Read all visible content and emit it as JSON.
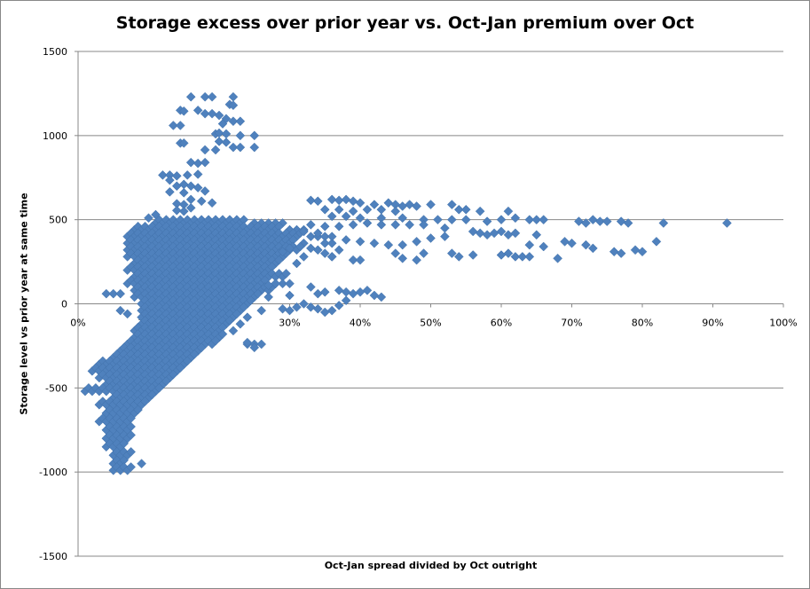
{
  "chart_data": {
    "type": "scatter",
    "title": "Storage excess over prior year vs. Oct-Jan premium over Oct",
    "xlabel": "Oct-Jan spread divided by Oct outright",
    "ylabel": "Storage level vs prior year at same time",
    "xlim": [
      0,
      100
    ],
    "ylim": [
      -1500,
      1500
    ],
    "x_unit": "%",
    "x_ticks": [
      "0%",
      "10%",
      "20%",
      "30%",
      "40%",
      "50%",
      "60%",
      "70%",
      "80%",
      "90%",
      "100%"
    ],
    "y_ticks": [
      "1500",
      "1000",
      "500",
      "0",
      "-500",
      "-1000",
      "-1500"
    ],
    "grid": "horizontal",
    "legend": "none",
    "marker_color": "#4F81BD",
    "marker": "diamond",
    "dense_rows": [
      {
        "y": 480,
        "from": 11,
        "to": 23,
        "extra": [
          25,
          26,
          27,
          28,
          29
        ]
      },
      {
        "y": 440,
        "from": 8,
        "to": 28,
        "extra": [
          30,
          31,
          32
        ]
      },
      {
        "y": 400,
        "from": 7,
        "to": 31,
        "extra": [
          33,
          34,
          35
        ]
      },
      {
        "y": 360,
        "from": 7,
        "to": 30,
        "extra": [
          32,
          35,
          36
        ]
      },
      {
        "y": 320,
        "from": 7,
        "to": 31,
        "extra": [
          34,
          37
        ]
      },
      {
        "y": 280,
        "from": 7,
        "to": 29,
        "extra": [
          32,
          36
        ]
      },
      {
        "y": 240,
        "from": 8,
        "to": 28,
        "extra": [
          31
        ]
      },
      {
        "y": 200,
        "from": 7,
        "to": 27,
        "extra": []
      },
      {
        "y": 160,
        "from": 8,
        "to": 29,
        "extra": []
      },
      {
        "y": 120,
        "from": 7,
        "to": 26,
        "extra": [
          28,
          29
        ]
      },
      {
        "y": 80,
        "from": 8,
        "to": 27,
        "extra": []
      },
      {
        "y": 40,
        "from": 8,
        "to": 25,
        "extra": [
          27
        ]
      },
      {
        "y": 0,
        "from": 9,
        "to": 24,
        "extra": []
      },
      {
        "y": -40,
        "from": 9,
        "to": 23,
        "extra": [
          26
        ]
      },
      {
        "y": -80,
        "from": 9,
        "to": 22,
        "extra": [
          24
        ]
      },
      {
        "y": -120,
        "from": 9,
        "to": 21,
        "extra": [
          23
        ]
      },
      {
        "y": -160,
        "from": 8,
        "to": 20,
        "extra": [
          22
        ]
      },
      {
        "y": -200,
        "from": 8,
        "to": 20,
        "extra": []
      },
      {
        "y": -240,
        "from": 7,
        "to": 19,
        "extra": [
          24,
          25
        ]
      },
      {
        "y": -280,
        "from": 6,
        "to": 17,
        "extra": []
      },
      {
        "y": -320,
        "from": 5,
        "to": 16,
        "extra": []
      },
      {
        "y": -360,
        "from": 3,
        "to": 15,
        "extra": []
      },
      {
        "y": -400,
        "from": 2,
        "to": 14,
        "extra": []
      },
      {
        "y": -440,
        "from": 3,
        "to": 13,
        "extra": []
      },
      {
        "y": -480,
        "from": 4,
        "to": 12,
        "extra": []
      },
      {
        "y": -520,
        "from": 1,
        "to": 11,
        "extra": []
      },
      {
        "y": -560,
        "from": 5,
        "to": 10,
        "extra": []
      },
      {
        "y": -600,
        "from": 3,
        "to": 9,
        "extra": []
      },
      {
        "y": -650,
        "from": 4,
        "to": 8,
        "extra": []
      },
      {
        "y": -700,
        "from": 3,
        "to": 7,
        "extra": []
      },
      {
        "y": -750,
        "from": 4,
        "to": 7,
        "extra": []
      },
      {
        "y": -800,
        "from": 4,
        "to": 7,
        "extra": []
      },
      {
        "y": -850,
        "from": 4,
        "to": 6,
        "extra": []
      },
      {
        "y": -900,
        "from": 5,
        "to": 7,
        "extra": []
      },
      {
        "y": -950,
        "from": 5,
        "to": 6,
        "extra": [
          9
        ]
      },
      {
        "y": -990,
        "from": 5,
        "to": 7,
        "extra": []
      }
    ],
    "points": [
      [
        16,
        1230
      ],
      [
        18,
        1230
      ],
      [
        19,
        1230
      ],
      [
        22,
        1230
      ],
      [
        21.5,
        1185
      ],
      [
        22,
        1180
      ],
      [
        14.5,
        1150
      ],
      [
        15,
        1145
      ],
      [
        17,
        1150
      ],
      [
        18,
        1130
      ],
      [
        19,
        1130
      ],
      [
        20,
        1120
      ],
      [
        21,
        1100
      ],
      [
        22,
        1085
      ],
      [
        23,
        1085
      ],
      [
        13.5,
        1060
      ],
      [
        14.5,
        1060
      ],
      [
        20.5,
        1070
      ],
      [
        19.5,
        1010
      ],
      [
        20,
        1015
      ],
      [
        21,
        1010
      ],
      [
        23,
        1000
      ],
      [
        25,
        1000
      ],
      [
        14.5,
        955
      ],
      [
        15,
        955
      ],
      [
        20,
        965
      ],
      [
        21,
        960
      ],
      [
        18,
        915
      ],
      [
        19.5,
        915
      ],
      [
        22,
        930
      ],
      [
        23,
        930
      ],
      [
        25,
        930
      ],
      [
        16,
        840
      ],
      [
        17,
        835
      ],
      [
        18,
        840
      ],
      [
        12,
        765
      ],
      [
        13,
        765
      ],
      [
        14,
        760
      ],
      [
        15.5,
        765
      ],
      [
        17,
        770
      ],
      [
        13,
        735
      ],
      [
        14,
        700
      ],
      [
        15,
        710
      ],
      [
        16,
        700
      ],
      [
        17,
        690
      ],
      [
        18,
        670
      ],
      [
        13,
        665
      ],
      [
        15,
        660
      ],
      [
        16,
        620
      ],
      [
        17.5,
        610
      ],
      [
        19,
        600
      ],
      [
        14,
        595
      ],
      [
        15,
        590
      ],
      [
        16,
        570
      ],
      [
        14,
        555
      ],
      [
        15,
        550
      ],
      [
        11,
        530
      ],
      [
        10,
        510
      ],
      [
        4,
        60
      ],
      [
        5,
        60
      ],
      [
        6,
        60
      ],
      [
        6,
        -40
      ],
      [
        7,
        -60
      ],
      [
        33,
        615
      ],
      [
        34,
        610
      ],
      [
        36,
        620
      ],
      [
        37,
        615
      ],
      [
        38,
        620
      ],
      [
        39,
        610
      ],
      [
        40,
        600
      ],
      [
        42,
        590
      ],
      [
        44,
        600
      ],
      [
        45,
        590
      ],
      [
        46,
        580
      ],
      [
        47,
        590
      ],
      [
        48,
        580
      ],
      [
        50,
        590
      ],
      [
        53,
        590
      ],
      [
        54,
        560
      ],
      [
        55,
        560
      ],
      [
        57,
        550
      ],
      [
        61,
        550
      ],
      [
        35,
        560
      ],
      [
        37,
        560
      ],
      [
        39,
        550
      ],
      [
        41,
        560
      ],
      [
        43,
        560
      ],
      [
        45,
        550
      ],
      [
        36,
        520
      ],
      [
        38,
        520
      ],
      [
        40,
        510
      ],
      [
        43,
        510
      ],
      [
        46,
        510
      ],
      [
        49,
        500
      ],
      [
        51,
        500
      ],
      [
        53,
        500
      ],
      [
        55,
        500
      ],
      [
        58,
        490
      ],
      [
        60,
        500
      ],
      [
        62,
        510
      ],
      [
        64,
        500
      ],
      [
        65,
        500
      ],
      [
        66,
        500
      ],
      [
        71,
        490
      ],
      [
        72,
        480
      ],
      [
        73,
        500
      ],
      [
        74,
        490
      ],
      [
        75,
        490
      ],
      [
        77,
        490
      ],
      [
        78,
        480
      ],
      [
        83,
        480
      ],
      [
        92,
        480
      ],
      [
        33,
        470
      ],
      [
        35,
        460
      ],
      [
        37,
        460
      ],
      [
        39,
        470
      ],
      [
        41,
        480
      ],
      [
        43,
        470
      ],
      [
        45,
        470
      ],
      [
        47,
        470
      ],
      [
        49,
        470
      ],
      [
        52,
        450
      ],
      [
        56,
        430
      ],
      [
        60,
        430
      ],
      [
        57,
        420
      ],
      [
        58,
        410
      ],
      [
        59,
        420
      ],
      [
        61,
        410
      ],
      [
        62,
        420
      ],
      [
        65,
        410
      ],
      [
        69,
        370
      ],
      [
        70,
        360
      ],
      [
        72,
        350
      ],
      [
        73,
        330
      ],
      [
        76,
        310
      ],
      [
        77,
        300
      ],
      [
        79,
        320
      ],
      [
        80,
        310
      ],
      [
        82,
        370
      ],
      [
        64,
        350
      ],
      [
        66,
        340
      ],
      [
        61,
        300
      ],
      [
        60,
        290
      ],
      [
        62,
        280
      ],
      [
        63,
        280
      ],
      [
        64,
        280
      ],
      [
        68,
        270
      ],
      [
        52,
        400
      ],
      [
        50,
        390
      ],
      [
        48,
        370
      ],
      [
        46,
        350
      ],
      [
        44,
        350
      ],
      [
        42,
        360
      ],
      [
        40,
        370
      ],
      [
        38,
        380
      ],
      [
        36,
        400
      ],
      [
        34,
        420
      ],
      [
        32,
        430
      ],
      [
        45,
        300
      ],
      [
        46,
        270
      ],
      [
        48,
        260
      ],
      [
        49,
        300
      ],
      [
        53,
        300
      ],
      [
        54,
        280
      ],
      [
        56,
        290
      ],
      [
        39,
        260
      ],
      [
        40,
        260
      ],
      [
        36,
        280
      ],
      [
        35,
        300
      ],
      [
        33,
        330
      ],
      [
        30,
        330
      ],
      [
        29,
        310
      ],
      [
        30,
        120
      ],
      [
        33,
        100
      ],
      [
        35,
        70
      ],
      [
        37,
        80
      ],
      [
        38,
        70
      ],
      [
        39,
        60
      ],
      [
        40,
        70
      ],
      [
        41,
        80
      ],
      [
        42,
        50
      ],
      [
        43,
        40
      ],
      [
        34,
        60
      ],
      [
        32,
        0
      ],
      [
        33,
        -20
      ],
      [
        34,
        -30
      ],
      [
        36,
        -40
      ],
      [
        37,
        -10
      ],
      [
        38,
        20
      ],
      [
        35,
        -50
      ],
      [
        31,
        -20
      ],
      [
        30,
        50
      ],
      [
        28,
        120
      ],
      [
        27,
        110
      ],
      [
        29,
        -30
      ],
      [
        26,
        -240
      ],
      [
        25,
        -260
      ],
      [
        24,
        -230
      ],
      [
        30,
        -40
      ]
    ]
  }
}
